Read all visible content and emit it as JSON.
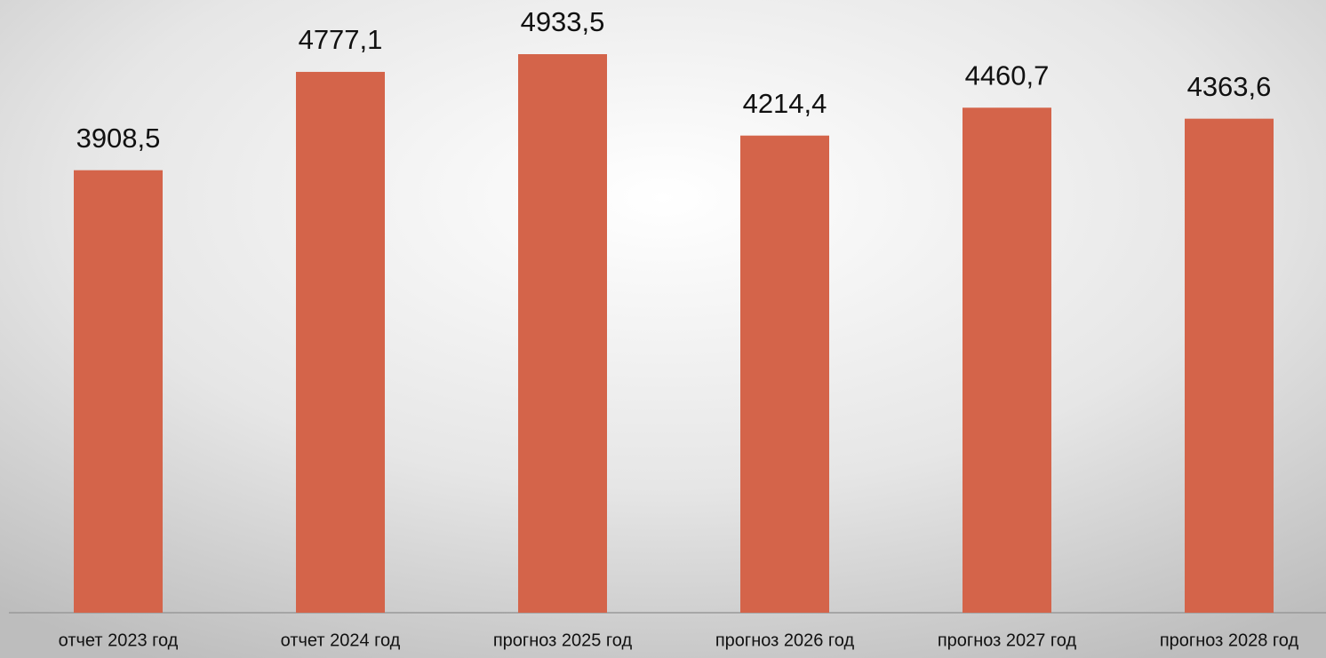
{
  "chart_data": {
    "type": "bar",
    "categories": [
      "отчет 2023 год",
      "отчет 2024 год",
      "прогноз 2025 год",
      "прогноз 2026 год",
      "прогноз 2027 год",
      "прогноз 2028 год"
    ],
    "values": [
      3908.5,
      4777.1,
      4933.5,
      4214.4,
      4460.7,
      4363.6
    ],
    "value_labels": [
      "3908,5",
      "4777,1",
      "4933,5",
      "4214,4",
      "4460,7",
      "4363,6"
    ],
    "color": "#d4644a"
  }
}
